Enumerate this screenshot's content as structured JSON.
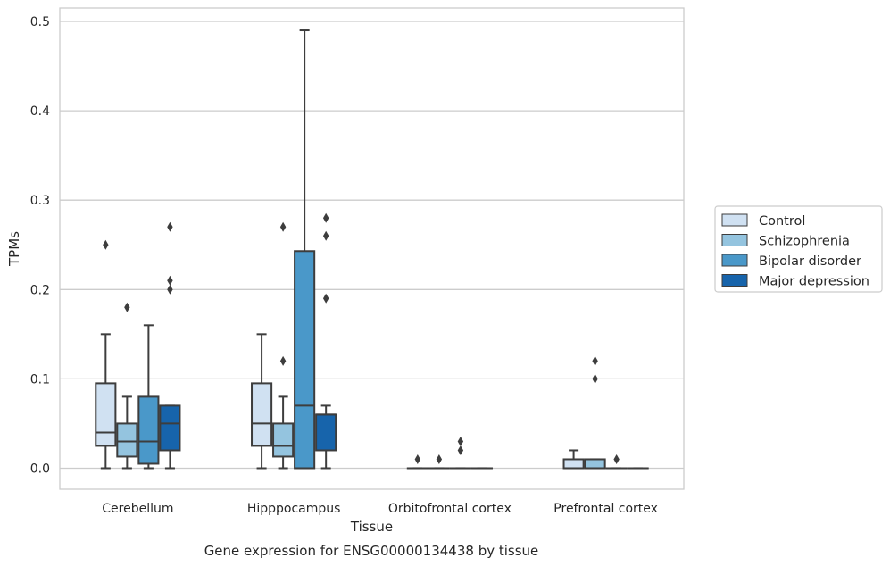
{
  "chart_data": {
    "type": "box",
    "caption": "Gene expression for ENSG00000134438 by tissue",
    "xlabel": "Tissue",
    "ylabel": "TPMs",
    "ylim": [
      -0.0235,
      0.515
    ],
    "yticks": [
      0.0,
      0.1,
      0.2,
      0.3,
      0.4,
      0.5
    ],
    "ytick_labels": [
      "0.0",
      "0.1",
      "0.2",
      "0.3",
      "0.4",
      "0.5"
    ],
    "grid": "horizontal",
    "legend_position": "right",
    "categories": [
      "Cerebellum",
      "Hipppocampus",
      "Orbitofrontal cortex",
      "Prefrontal cortex"
    ],
    "series": [
      {
        "name": "Control",
        "color": "#d0e1f2",
        "boxes": [
          {
            "whisker_low": 0.0,
            "q1": 0.025,
            "median": 0.04,
            "q3": 0.095,
            "whisker_high": 0.15,
            "outliers": [
              0.25
            ]
          },
          {
            "whisker_low": 0.0,
            "q1": 0.025,
            "median": 0.05,
            "q3": 0.095,
            "whisker_high": 0.15,
            "outliers": []
          },
          {
            "whisker_low": 0.0,
            "q1": 0.0,
            "median": 0.0,
            "q3": 0.0,
            "whisker_high": 0.0,
            "outliers": [
              0.01
            ]
          },
          {
            "whisker_low": 0.0,
            "q1": 0.0,
            "median": 0.0,
            "q3": 0.01,
            "whisker_high": 0.02,
            "outliers": []
          }
        ]
      },
      {
        "name": "Schizophrenia",
        "color": "#94c4df",
        "boxes": [
          {
            "whisker_low": 0.0,
            "q1": 0.013,
            "median": 0.03,
            "q3": 0.05,
            "whisker_high": 0.08,
            "outliers": [
              0.18
            ]
          },
          {
            "whisker_low": 0.0,
            "q1": 0.013,
            "median": 0.025,
            "q3": 0.05,
            "whisker_high": 0.08,
            "outliers": [
              0.27,
              0.12
            ]
          },
          {
            "whisker_low": 0.0,
            "q1": 0.0,
            "median": 0.0,
            "q3": 0.0,
            "whisker_high": 0.0,
            "outliers": [
              0.01
            ]
          },
          {
            "whisker_low": 0.0,
            "q1": 0.0,
            "median": 0.0,
            "q3": 0.01,
            "whisker_high": 0.01,
            "outliers": [
              0.12,
              0.1
            ]
          }
        ]
      },
      {
        "name": "Bipolar disorder",
        "color": "#4a98c9",
        "boxes": [
          {
            "whisker_low": 0.0,
            "q1": 0.005,
            "median": 0.03,
            "q3": 0.08,
            "whisker_high": 0.16,
            "outliers": []
          },
          {
            "whisker_low": 0.0,
            "q1": 0.0,
            "median": 0.07,
            "q3": 0.243,
            "whisker_high": 0.49,
            "outliers": []
          },
          {
            "whisker_low": 0.0,
            "q1": 0.0,
            "median": 0.0,
            "q3": 0.0,
            "whisker_high": 0.0,
            "outliers": [
              0.03,
              0.02
            ]
          },
          {
            "whisker_low": 0.0,
            "q1": 0.0,
            "median": 0.0,
            "q3": 0.0,
            "whisker_high": 0.0,
            "outliers": [
              0.01
            ]
          }
        ]
      },
      {
        "name": "Major depression",
        "color": "#1764ab",
        "boxes": [
          {
            "whisker_low": 0.0,
            "q1": 0.02,
            "median": 0.05,
            "q3": 0.07,
            "whisker_high": 0.07,
            "outliers": [
              0.27,
              0.21,
              0.2
            ]
          },
          {
            "whisker_low": 0.0,
            "q1": 0.02,
            "median": 0.06,
            "q3": 0.06,
            "whisker_high": 0.07,
            "outliers": [
              0.28,
              0.26,
              0.19
            ]
          },
          {
            "whisker_low": 0.0,
            "q1": 0.0,
            "median": 0.0,
            "q3": 0.0,
            "whisker_high": 0.0,
            "outliers": []
          },
          {
            "whisker_low": 0.0,
            "q1": 0.0,
            "median": 0.0,
            "q3": 0.0,
            "whisker_high": 0.0,
            "outliers": []
          }
        ]
      }
    ]
  }
}
